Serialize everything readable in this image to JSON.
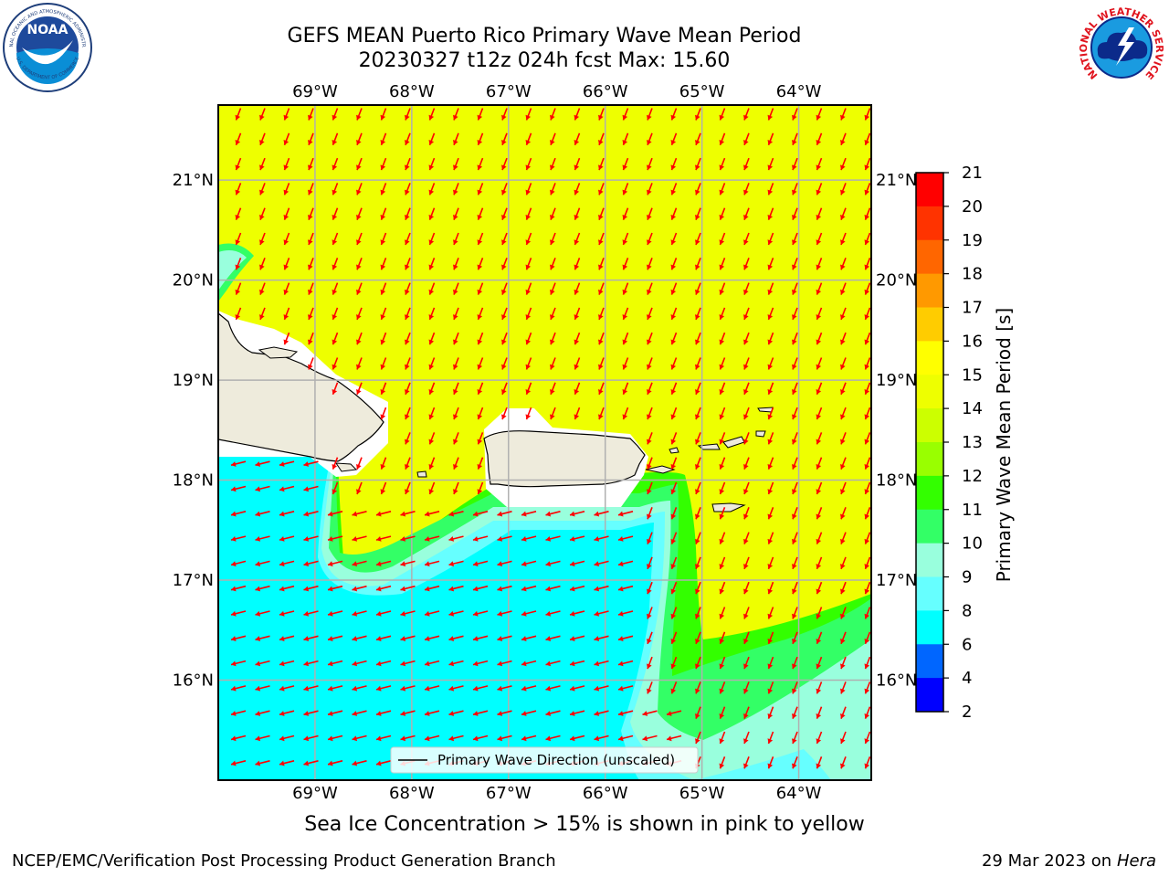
{
  "title": {
    "line1": "GEFS MEAN Puerto Rico Primary Wave Mean Period",
    "line2": "20230327 t12z 024h fcst   Max: 15.60"
  },
  "logos": {
    "left": "noaa-logo",
    "left_text": "NOAA",
    "left_ring_top": "NATIONAL OCEANIC AND ATMOSPHERIC ADMINISTRATION",
    "left_ring_bottom": "U.S. DEPARTMENT OF COMMERCE",
    "right": "nws-logo",
    "right_ring": "NATIONAL WEATHER SERVICE"
  },
  "map": {
    "lon_ticks": [
      "69°W",
      "68°W",
      "67°W",
      "66°W",
      "65°W",
      "64°W"
    ],
    "lat_ticks": [
      "21°N",
      "20°N",
      "19°N",
      "18°N",
      "17°N",
      "16°N"
    ],
    "lon_range": [
      -70.0,
      -63.25
    ],
    "lat_range": [
      15.0,
      21.75
    ],
    "grid": true,
    "legend": "Primary Wave Direction (unscaled)",
    "arrow_color": "#ff0000",
    "land_color": "#eeebdc"
  },
  "colorbar": {
    "label": "Primary Wave Mean Period [s]",
    "ticks": [
      "21",
      "20",
      "19",
      "18",
      "17",
      "16",
      "15",
      "14",
      "13",
      "12",
      "11",
      "10",
      "9",
      "8",
      "6",
      "4",
      "2"
    ],
    "colors": [
      "#ff0000",
      "#ff3300",
      "#ff6600",
      "#ff9900",
      "#ffcc00",
      "#ffff00",
      "#eeff00",
      "#ccff00",
      "#99ff00",
      "#33ff00",
      "#33ff66",
      "#99ffdd",
      "#66ffff",
      "#00ffff",
      "#0066ff",
      "#0000ff"
    ]
  },
  "footer": {
    "note": "Sea Ice Concentration > 15% is shown in pink to yellow",
    "credit": "NCEP/EMC/Verification Post Processing Product Generation Branch",
    "date": "29 Mar 2023 on",
    "host": "Hera"
  }
}
